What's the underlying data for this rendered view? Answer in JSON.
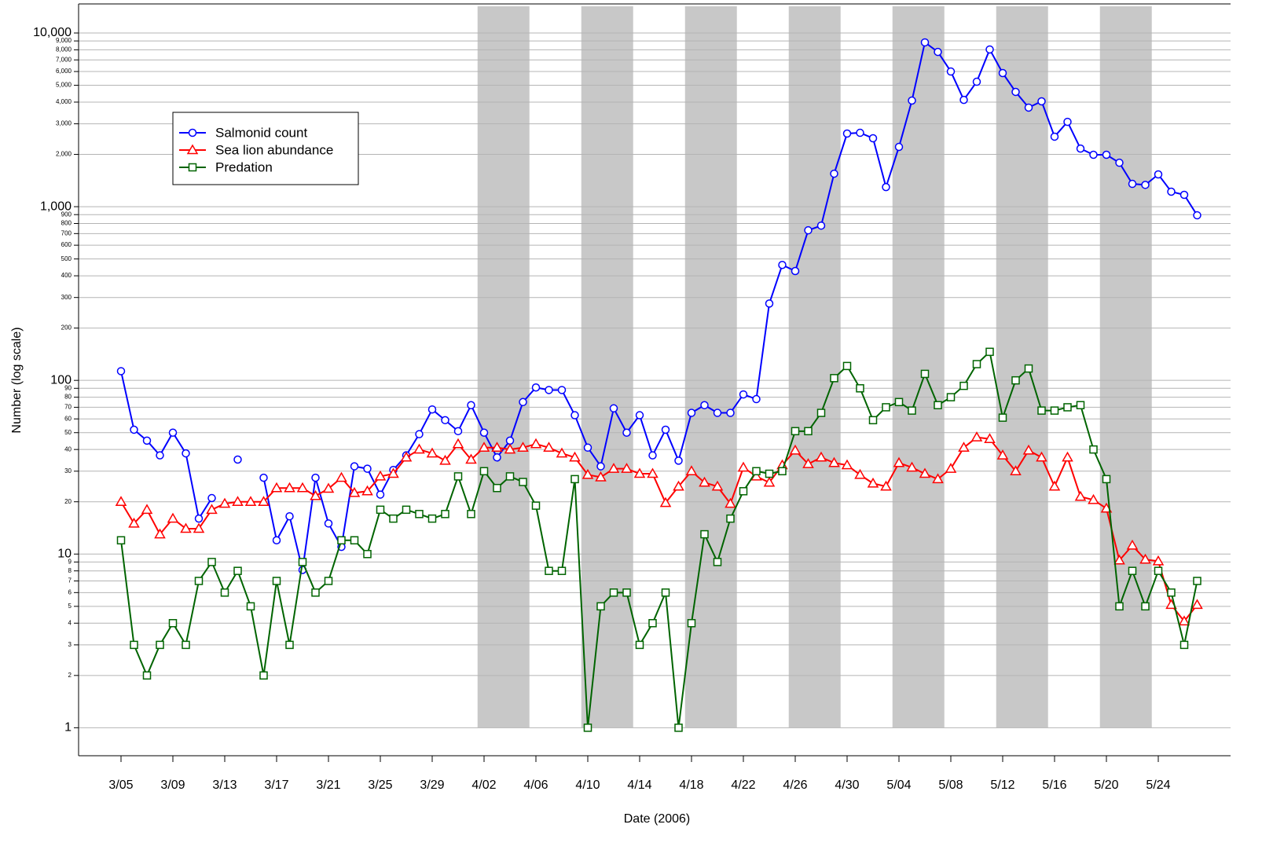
{
  "chart_data": {
    "type": "line",
    "x_label": "Date (2006)",
    "y_label": "Number (log scale)",
    "y_scale": "log",
    "grid": true,
    "ylim": [
      0.69,
      14700
    ],
    "yticks": [
      1,
      2,
      3,
      4,
      5,
      6,
      7,
      8,
      9,
      10,
      20,
      30,
      40,
      50,
      60,
      70,
      80,
      90,
      100,
      200,
      300,
      400,
      500,
      600,
      700,
      800,
      900,
      {
        "value": 1000,
        "label": "1,000"
      },
      {
        "value": 2000,
        "label": "2,000"
      },
      {
        "value": 3000,
        "label": "3,000"
      },
      {
        "value": 4000,
        "label": "4,000"
      },
      {
        "value": 5000,
        "label": "5,000"
      },
      {
        "value": 6000,
        "label": "6,000"
      },
      {
        "value": 7000,
        "label": "7,000"
      },
      {
        "value": 8000,
        "label": "8,000"
      },
      {
        "value": 9000,
        "label": "9,000"
      },
      {
        "value": 10000,
        "label": "10,000"
      }
    ],
    "shaded_periods": [
      [
        27.5,
        31.5
      ],
      [
        35.5,
        39.5
      ],
      [
        43.5,
        47.5
      ],
      [
        51.5,
        55.5
      ],
      [
        59.5,
        63.5
      ],
      [
        67.5,
        71.5
      ],
      [
        75.5,
        79.5
      ]
    ],
    "shade_color": "#c8c8c8",
    "categories": [
      "3/05",
      null,
      null,
      null,
      "3/09",
      null,
      null,
      null,
      "3/13",
      null,
      null,
      null,
      "3/17",
      null,
      null,
      null,
      "3/21",
      null,
      null,
      null,
      "3/25",
      null,
      null,
      null,
      "3/29",
      null,
      null,
      null,
      "4/02",
      null,
      null,
      null,
      "4/06",
      null,
      null,
      null,
      "4/10",
      null,
      null,
      null,
      "4/14",
      null,
      null,
      null,
      "4/18",
      null,
      null,
      null,
      "4/22",
      null,
      null,
      null,
      "4/26",
      null,
      null,
      null,
      "4/30",
      null,
      null,
      null,
      "5/04",
      null,
      null,
      null,
      "5/08",
      null,
      null,
      null,
      "5/12",
      null,
      null,
      null,
      "5/16",
      null,
      null,
      null,
      "5/20",
      null,
      null,
      null,
      "5/24",
      null,
      null,
      null
    ],
    "series": [
      {
        "name": "Salmonid count",
        "color": "#0000ff",
        "marker": "circle",
        "values": [
          113,
          52,
          45,
          37,
          50,
          38,
          16,
          21,
          null,
          35,
          null,
          27.5,
          12,
          16.5,
          8.1,
          27.5,
          15,
          11,
          32,
          31,
          22,
          30.5,
          37,
          49,
          68,
          59,
          51,
          72,
          50,
          36,
          45,
          75,
          91,
          88,
          88,
          63,
          41,
          32,
          69,
          50,
          63,
          37,
          52,
          34.5,
          65,
          72,
          65,
          65,
          83,
          78,
          277,
          462,
          426,
          731,
          778,
          1549,
          2636,
          2663,
          2477,
          1297,
          2208,
          4083,
          8830,
          7780,
          6000,
          4120,
          5240,
          8040,
          5880,
          4580,
          3720,
          4040,
          2530,
          3080,
          2160,
          1990,
          1990,
          1790,
          1353,
          1335,
          1534,
          1220,
          1170,
          892
        ]
      },
      {
        "name": "Sea lion abundance",
        "color": "#ff0000",
        "marker": "triangle",
        "values": [
          20,
          15,
          18,
          13,
          16,
          14,
          14,
          18,
          19.5,
          20,
          20,
          20,
          24,
          24,
          24,
          21.6,
          23.8,
          27.5,
          22.5,
          23,
          28,
          29,
          36,
          40,
          38,
          34.5,
          43,
          35,
          41,
          41,
          40,
          41,
          43,
          41,
          38,
          36,
          28.6,
          27.7,
          31,
          31,
          29,
          29,
          19.7,
          24.5,
          30,
          25.8,
          24.5,
          19.5,
          31.5,
          28,
          25.8,
          32.5,
          39.5,
          33,
          36,
          33.5,
          32.5,
          28.6,
          25.5,
          24.5,
          33.5,
          31.5,
          29,
          27,
          31,
          41,
          47,
          46,
          37,
          30,
          39.5,
          36,
          24.5,
          36,
          21.4,
          20.5,
          18.3,
          9.2,
          11.2,
          9.3,
          9.1,
          5.1,
          4.1,
          5.1
        ]
      },
      {
        "name": "Predation",
        "color": "#006400",
        "marker": "square",
        "values": [
          12,
          3,
          2,
          3,
          4,
          3,
          7,
          9,
          6,
          8,
          5,
          2,
          7,
          3,
          9,
          6,
          7,
          12,
          12,
          10,
          18,
          16,
          18,
          17,
          16,
          17,
          28,
          17,
          30,
          24,
          28,
          26,
          19,
          8,
          8,
          27,
          1,
          5,
          6,
          6,
          3,
          4,
          6,
          1,
          4,
          13,
          9,
          16,
          23,
          30,
          29,
          30,
          51,
          51,
          65,
          103,
          121,
          90,
          59,
          70,
          75,
          67,
          109,
          72,
          80,
          93,
          124,
          146,
          61,
          100,
          117,
          67,
          67,
          70,
          72,
          40,
          27,
          5,
          8,
          5,
          8,
          6,
          3,
          7
        ]
      }
    ]
  }
}
